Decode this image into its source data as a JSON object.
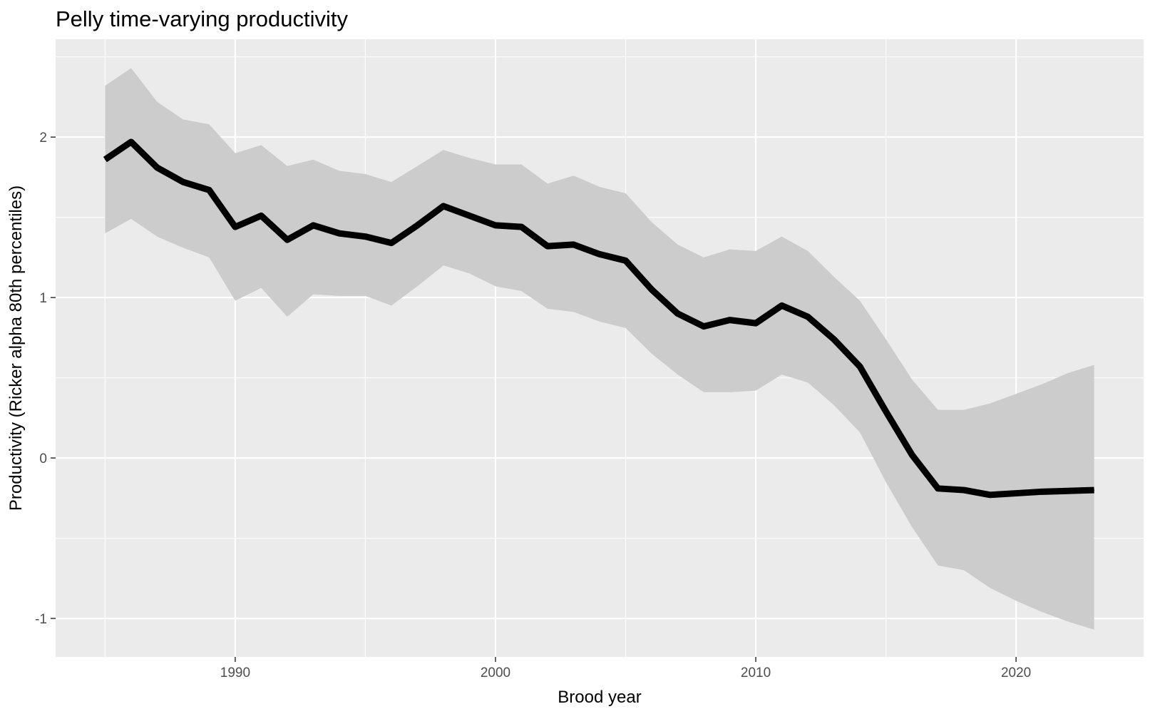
{
  "chart_data": {
    "type": "line",
    "title": "Pelly time-varying productivity",
    "xlabel": "Brood year",
    "ylabel": "Productivity (Ricker alpha 80th percentiles)",
    "xlim": [
      1983.1,
      2024.9
    ],
    "ylim": [
      -1.24,
      2.61
    ],
    "x_ticks": [
      1990,
      2000,
      2010,
      2020
    ],
    "y_ticks": [
      -1,
      0,
      1,
      2
    ],
    "x_tick_labels": [
      "1990",
      "2000",
      "2010",
      "2020"
    ],
    "y_tick_labels": [
      "-1",
      "0",
      "1",
      "2"
    ],
    "x_minor": [
      1985,
      1995,
      2005,
      2015
    ],
    "y_minor": [
      -0.5,
      0.5,
      1.5,
      2.5
    ],
    "grid": true,
    "legend": "none",
    "colors": {
      "panel": "#ebebeb",
      "grid": "#ffffff",
      "ribbon": "#cccccc",
      "line": "#000000",
      "tick": "#333333"
    },
    "x": [
      1985,
      1986,
      1987,
      1988,
      1989,
      1990,
      1991,
      1992,
      1993,
      1994,
      1995,
      1996,
      1997,
      1998,
      1999,
      2000,
      2001,
      2002,
      2003,
      2004,
      2005,
      2006,
      2007,
      2008,
      2009,
      2010,
      2011,
      2012,
      2013,
      2014,
      2015,
      2016,
      2017,
      2018,
      2019,
      2020,
      2021,
      2022,
      2023
    ],
    "series": [
      {
        "role": "median",
        "values": [
          1.86,
          1.97,
          1.81,
          1.72,
          1.67,
          1.44,
          1.51,
          1.36,
          1.45,
          1.4,
          1.38,
          1.34,
          1.45,
          1.57,
          1.51,
          1.45,
          1.44,
          1.32,
          1.33,
          1.27,
          1.23,
          1.05,
          0.9,
          0.82,
          0.86,
          0.84,
          0.95,
          0.88,
          0.74,
          0.57,
          0.29,
          0.02,
          -0.19,
          -0.2,
          -0.23,
          -0.22,
          -0.21,
          -0.205,
          -0.2
        ]
      },
      {
        "role": "upper",
        "values": [
          2.32,
          2.43,
          2.22,
          2.11,
          2.08,
          1.9,
          1.95,
          1.82,
          1.86,
          1.79,
          1.77,
          1.72,
          1.82,
          1.92,
          1.87,
          1.83,
          1.83,
          1.71,
          1.76,
          1.69,
          1.65,
          1.47,
          1.33,
          1.25,
          1.3,
          1.29,
          1.38,
          1.29,
          1.13,
          0.98,
          0.74,
          0.49,
          0.3,
          0.3,
          0.34,
          0.4,
          0.46,
          0.53,
          0.58
        ]
      },
      {
        "role": "lower",
        "values": [
          1.4,
          1.49,
          1.38,
          1.31,
          1.25,
          0.98,
          1.06,
          0.88,
          1.02,
          1.01,
          1.01,
          0.95,
          1.07,
          1.2,
          1.15,
          1.07,
          1.04,
          0.93,
          0.91,
          0.85,
          0.81,
          0.65,
          0.52,
          0.41,
          0.41,
          0.42,
          0.52,
          0.47,
          0.33,
          0.16,
          -0.15,
          -0.43,
          -0.67,
          -0.7,
          -0.81,
          -0.89,
          -0.96,
          -1.02,
          -1.07
        ]
      }
    ]
  }
}
